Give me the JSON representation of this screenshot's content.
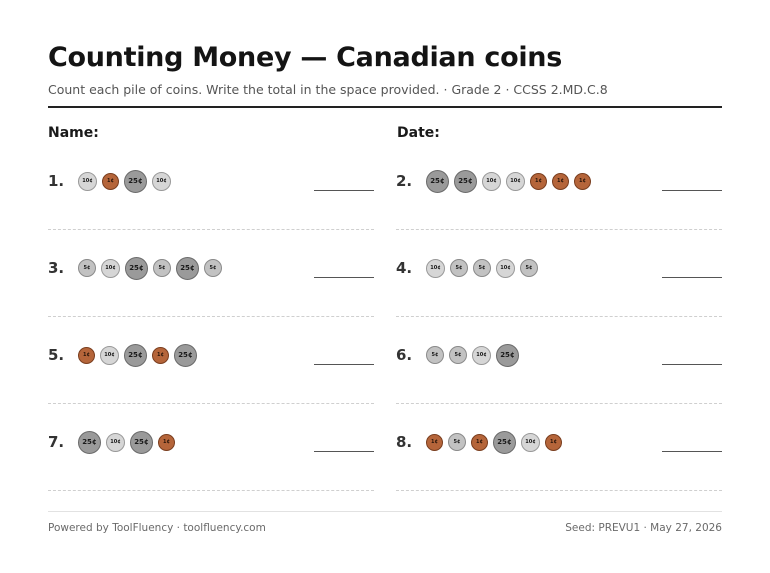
{
  "title": "Counting Money — Canadian coins",
  "subtitle": "Count each pile of coins. Write the total in the space provided. · Grade 2 · CCSS 2.MD.C.8",
  "name_label": "Name:",
  "date_label": "Date:",
  "coin_colors": {
    "1": "#b5653a",
    "5": "#c2c2c2",
    "10": "#d6d6d6",
    "25": "#9a9a9a"
  },
  "problems": [
    {
      "number": "1.",
      "coins": [
        "10¢",
        "1¢",
        "25¢",
        "10¢"
      ]
    },
    {
      "number": "2.",
      "coins": [
        "25¢",
        "25¢",
        "10¢",
        "10¢",
        "1¢",
        "1¢",
        "1¢"
      ]
    },
    {
      "number": "3.",
      "coins": [
        "5¢",
        "10¢",
        "25¢",
        "5¢",
        "25¢",
        "5¢"
      ]
    },
    {
      "number": "4.",
      "coins": [
        "10¢",
        "5¢",
        "5¢",
        "10¢",
        "5¢"
      ]
    },
    {
      "number": "5.",
      "coins": [
        "1¢",
        "10¢",
        "25¢",
        "1¢",
        "25¢"
      ]
    },
    {
      "number": "6.",
      "coins": [
        "5¢",
        "5¢",
        "10¢",
        "25¢"
      ]
    },
    {
      "number": "7.",
      "coins": [
        "25¢",
        "10¢",
        "25¢",
        "1¢"
      ]
    },
    {
      "number": "8.",
      "coins": [
        "1¢",
        "5¢",
        "1¢",
        "25¢",
        "10¢",
        "1¢"
      ]
    }
  ],
  "footer": {
    "left": "Powered by ToolFluency · toolfluency.com",
    "right": "Seed: PREVU1 · May 27, 2026"
  }
}
